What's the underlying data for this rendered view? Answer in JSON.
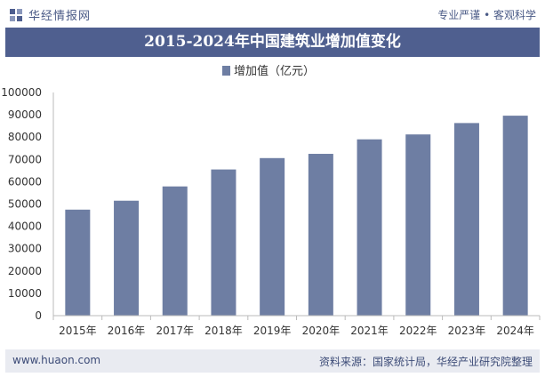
{
  "header": {
    "brand_name": "华经情报网",
    "slogan": "专业严谨 • 客观科学"
  },
  "footer": {
    "url": "www.huaon.com",
    "source": "资料来源：国家统计局，华经产业研究院整理"
  },
  "colors": {
    "bar": "#6e7ea3",
    "title_bg": "#4f5f8f",
    "footer_bg": "#e9ebf1"
  },
  "chart_data": {
    "type": "bar",
    "title": "2015-2024年中国建筑业增加值变化",
    "categories": [
      "2015年",
      "2016年",
      "2017年",
      "2018年",
      "2019年",
      "2020年",
      "2021年",
      "2022年",
      "2023年",
      "2024年"
    ],
    "series": [
      {
        "name": "增加值（亿元）",
        "values": [
          47500,
          51500,
          57900,
          65500,
          70600,
          72500,
          79000,
          81200,
          86300,
          89600
        ]
      }
    ],
    "y_ticks": [
      "0",
      "10000",
      "20000",
      "30000",
      "40000",
      "50000",
      "60000",
      "70000",
      "80000",
      "90000",
      "100000"
    ],
    "ylim": [
      0,
      100000
    ],
    "xlabel": "",
    "ylabel": "",
    "legend_position": "top-center",
    "grid": false
  }
}
